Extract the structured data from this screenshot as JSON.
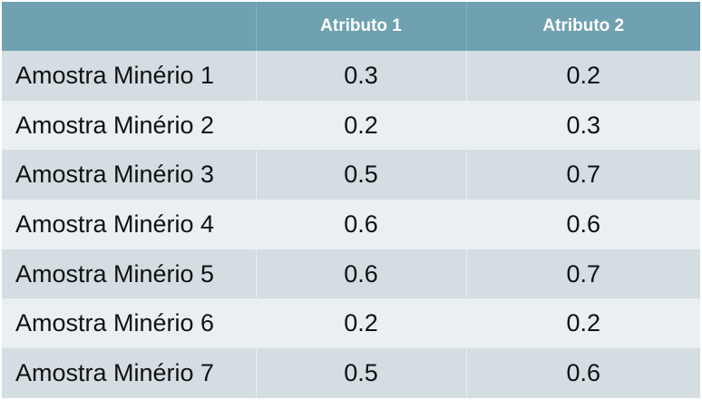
{
  "table": {
    "headers": [
      "",
      "Atributo 1",
      "Atributo 2"
    ],
    "rows": [
      {
        "name": "Amostra Minério 1",
        "a1": "0.3",
        "a2": "0.2"
      },
      {
        "name": "Amostra Minério 2",
        "a1": "0.2",
        "a2": "0.3"
      },
      {
        "name": "Amostra Minério 3",
        "a1": "0.5",
        "a2": "0.7"
      },
      {
        "name": "Amostra Minério 4",
        "a1": "0.6",
        "a2": "0.6"
      },
      {
        "name": "Amostra Minério 5",
        "a1": "0.6",
        "a2": "0.7"
      },
      {
        "name": "Amostra Minério 6",
        "a1": "0.2",
        "a2": "0.2"
      },
      {
        "name": "Amostra Minério 7",
        "a1": "0.5",
        "a2": "0.6"
      }
    ]
  },
  "colors": {
    "header_bg": "#6fa1b1",
    "row_dark": "#d3dde2",
    "row_light": "#eaeff2"
  }
}
